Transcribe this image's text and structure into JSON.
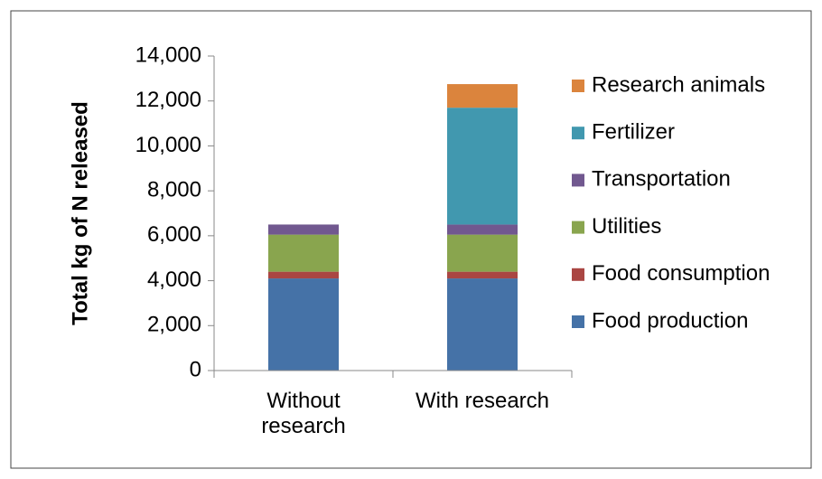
{
  "chart_data": {
    "type": "stacked_bar",
    "ylabel": "Total kg of N released",
    "categories": [
      "Without research",
      "With research"
    ],
    "series": [
      {
        "name": "Food production",
        "color": "#4572a7",
        "values": [
          4100,
          4100
        ]
      },
      {
        "name": "Food consumption",
        "color": "#aa4643",
        "values": [
          300,
          300
        ]
      },
      {
        "name": "Utilities",
        "color": "#89a54e",
        "values": [
          1650,
          1650
        ]
      },
      {
        "name": "Transportation",
        "color": "#71588f",
        "values": [
          450,
          450
        ]
      },
      {
        "name": "Fertilizer",
        "color": "#4198af",
        "values": [
          0,
          5200
        ]
      },
      {
        "name": "Research animals",
        "color": "#db843d",
        "values": [
          0,
          1050
        ]
      }
    ],
    "ylim": [
      0,
      14000
    ],
    "yticks": [
      0,
      {
        "value": 2000,
        "label": "2,000"
      },
      {
        "value": 4000,
        "label": "4,000"
      },
      {
        "value": 6000,
        "label": "6,000"
      },
      {
        "value": 8000,
        "label": "8,000"
      },
      {
        "value": 10000,
        "label": "10,000"
      },
      {
        "value": 12000,
        "label": "12,000"
      },
      {
        "value": 14000,
        "label": "14,000"
      }
    ],
    "legend": "right"
  }
}
